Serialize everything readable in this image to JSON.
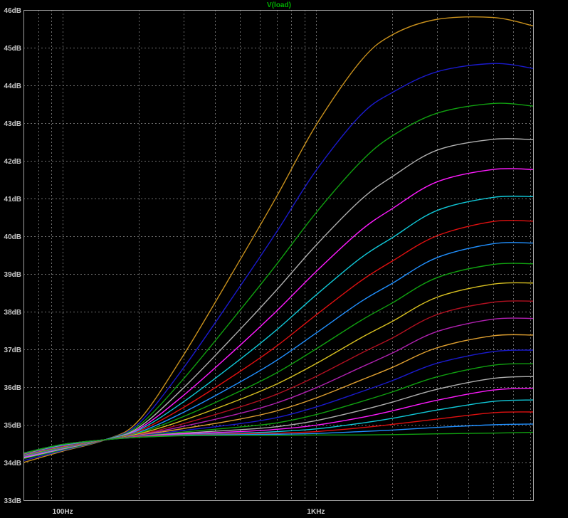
{
  "window": {
    "trace_title": "V(load)",
    "trace_title_color": "#00b000"
  },
  "colors": {
    "background": "#000000",
    "frame": "#a0a0a0",
    "grid": "#6e6e6e",
    "tick_label": "#c8c8c8"
  },
  "chart_data": {
    "type": "line",
    "title": "V(load)",
    "xlabel": "",
    "ylabel": "",
    "xscale": "log",
    "xlim": [
      70,
      7200
    ],
    "ylim": [
      33,
      46
    ],
    "grid": true,
    "x_ticks": [
      {
        "value": 100,
        "label": "100Hz"
      },
      {
        "value": 1000,
        "label": "1KHz"
      }
    ],
    "y_ticks": [
      {
        "value": 46,
        "label": "46dB"
      },
      {
        "value": 45,
        "label": "45dB"
      },
      {
        "value": 44,
        "label": "44dB"
      },
      {
        "value": 43,
        "label": "43dB"
      },
      {
        "value": 42,
        "label": "42dB"
      },
      {
        "value": 41,
        "label": "41dB"
      },
      {
        "value": 40,
        "label": "40dB"
      },
      {
        "value": 39,
        "label": "39dB"
      },
      {
        "value": 38,
        "label": "38dB"
      },
      {
        "value": 37,
        "label": "37dB"
      },
      {
        "value": 36,
        "label": "36dB"
      },
      {
        "value": 35,
        "label": "35dB"
      },
      {
        "value": 34,
        "label": "34dB"
      },
      {
        "value": 33,
        "label": "33dB"
      }
    ],
    "x": [
      70,
      100,
      150,
      200,
      300,
      500,
      700,
      1000,
      1500,
      2000,
      3000,
      5000,
      7200
    ],
    "series": [
      {
        "color": "#c8901c",
        "values": [
          34.0,
          34.3,
          34.62,
          35.12,
          36.85,
          39.36,
          41.06,
          42.94,
          44.64,
          45.34,
          45.75,
          45.8,
          45.58
        ]
      },
      {
        "color": "#1a1acc",
        "values": [
          34.05,
          34.32,
          34.62,
          35.04,
          36.51,
          38.66,
          40.12,
          41.74,
          43.21,
          43.81,
          44.36,
          44.58,
          44.45
        ]
      },
      {
        "color": "#10a010",
        "values": [
          34.1,
          34.34,
          34.62,
          34.98,
          36.22,
          38.03,
          39.26,
          40.62,
          41.97,
          42.66,
          43.26,
          43.52,
          43.45
        ]
      },
      {
        "color": "#b0b0b0",
        "values": [
          34.12,
          34.36,
          34.62,
          34.93,
          35.98,
          37.52,
          38.58,
          39.76,
          40.96,
          41.58,
          42.28,
          42.57,
          42.56
        ]
      },
      {
        "color": "#ff1aff",
        "values": [
          34.14,
          34.37,
          34.62,
          34.89,
          35.78,
          37.1,
          38.02,
          39.06,
          40.15,
          40.73,
          41.44,
          41.77,
          41.77
        ]
      },
      {
        "color": "#10c8d8",
        "values": [
          34.16,
          34.38,
          34.62,
          34.86,
          35.61,
          36.73,
          37.52,
          38.44,
          39.42,
          39.96,
          40.68,
          41.03,
          41.05
        ]
      },
      {
        "color": "#e01010",
        "values": [
          34.17,
          34.39,
          34.61,
          34.83,
          35.46,
          36.41,
          37.09,
          37.91,
          38.81,
          39.34,
          40.01,
          40.39,
          40.4
        ]
      },
      {
        "color": "#2090ff",
        "values": [
          34.18,
          34.4,
          34.61,
          34.8,
          35.33,
          36.13,
          36.71,
          37.43,
          38.26,
          38.75,
          39.43,
          39.8,
          39.82
        ]
      },
      {
        "color": "#10a010",
        "values": [
          34.19,
          34.41,
          34.61,
          34.78,
          35.22,
          35.89,
          36.38,
          37.01,
          37.76,
          38.23,
          38.9,
          39.25,
          39.27
        ]
      },
      {
        "color": "#d8c020",
        "values": [
          34.2,
          34.42,
          34.61,
          34.76,
          35.12,
          35.67,
          36.08,
          36.62,
          37.3,
          37.74,
          38.38,
          38.73,
          38.76
        ]
      },
      {
        "color": "#b01020",
        "values": [
          34.21,
          34.43,
          34.61,
          34.74,
          35.03,
          35.47,
          35.81,
          36.28,
          36.89,
          37.3,
          37.92,
          38.25,
          38.28
        ]
      },
      {
        "color": "#b020b0",
        "values": [
          34.21,
          34.44,
          34.61,
          34.73,
          34.96,
          35.3,
          35.58,
          35.98,
          36.52,
          36.9,
          37.47,
          37.8,
          37.82
        ]
      },
      {
        "color": "#e0a030",
        "values": [
          34.22,
          34.45,
          34.61,
          34.72,
          34.9,
          35.15,
          35.37,
          35.71,
          36.18,
          36.52,
          37.04,
          37.36,
          37.38
        ]
      },
      {
        "color": "#1a1acc",
        "values": [
          34.22,
          34.45,
          34.61,
          34.71,
          34.85,
          35.03,
          35.19,
          35.47,
          35.87,
          36.17,
          36.63,
          36.94,
          36.98
        ]
      },
      {
        "color": "#10a010",
        "values": [
          34.23,
          34.46,
          34.61,
          34.7,
          34.81,
          34.94,
          35.05,
          35.27,
          35.61,
          35.87,
          36.27,
          36.58,
          36.62
        ]
      },
      {
        "color": "#b0b0b0",
        "values": [
          34.23,
          34.46,
          34.61,
          34.69,
          34.78,
          34.87,
          34.95,
          35.11,
          35.38,
          35.6,
          35.94,
          36.23,
          36.28
        ]
      },
      {
        "color": "#ff1aff",
        "values": [
          34.24,
          34.47,
          34.61,
          34.69,
          34.76,
          34.82,
          34.88,
          34.99,
          35.19,
          35.37,
          35.65,
          35.92,
          35.97
        ]
      },
      {
        "color": "#10c8d8",
        "values": [
          34.24,
          34.47,
          34.61,
          34.68,
          34.74,
          34.78,
          34.82,
          34.89,
          35.04,
          35.17,
          35.39,
          35.62,
          35.66
        ]
      },
      {
        "color": "#e01010",
        "values": [
          34.24,
          34.48,
          34.61,
          34.68,
          34.73,
          34.76,
          34.78,
          34.82,
          34.92,
          35.01,
          35.15,
          35.32,
          35.34
        ]
      },
      {
        "color": "#2090ff",
        "values": [
          34.25,
          34.48,
          34.61,
          34.67,
          34.72,
          34.74,
          34.75,
          34.77,
          34.82,
          34.86,
          34.93,
          35.0,
          35.02
        ]
      },
      {
        "color": "#10a010",
        "values": [
          34.25,
          34.48,
          34.61,
          34.67,
          34.71,
          34.72,
          34.72,
          34.73,
          34.73,
          34.74,
          34.76,
          34.78,
          34.8
        ]
      }
    ]
  }
}
